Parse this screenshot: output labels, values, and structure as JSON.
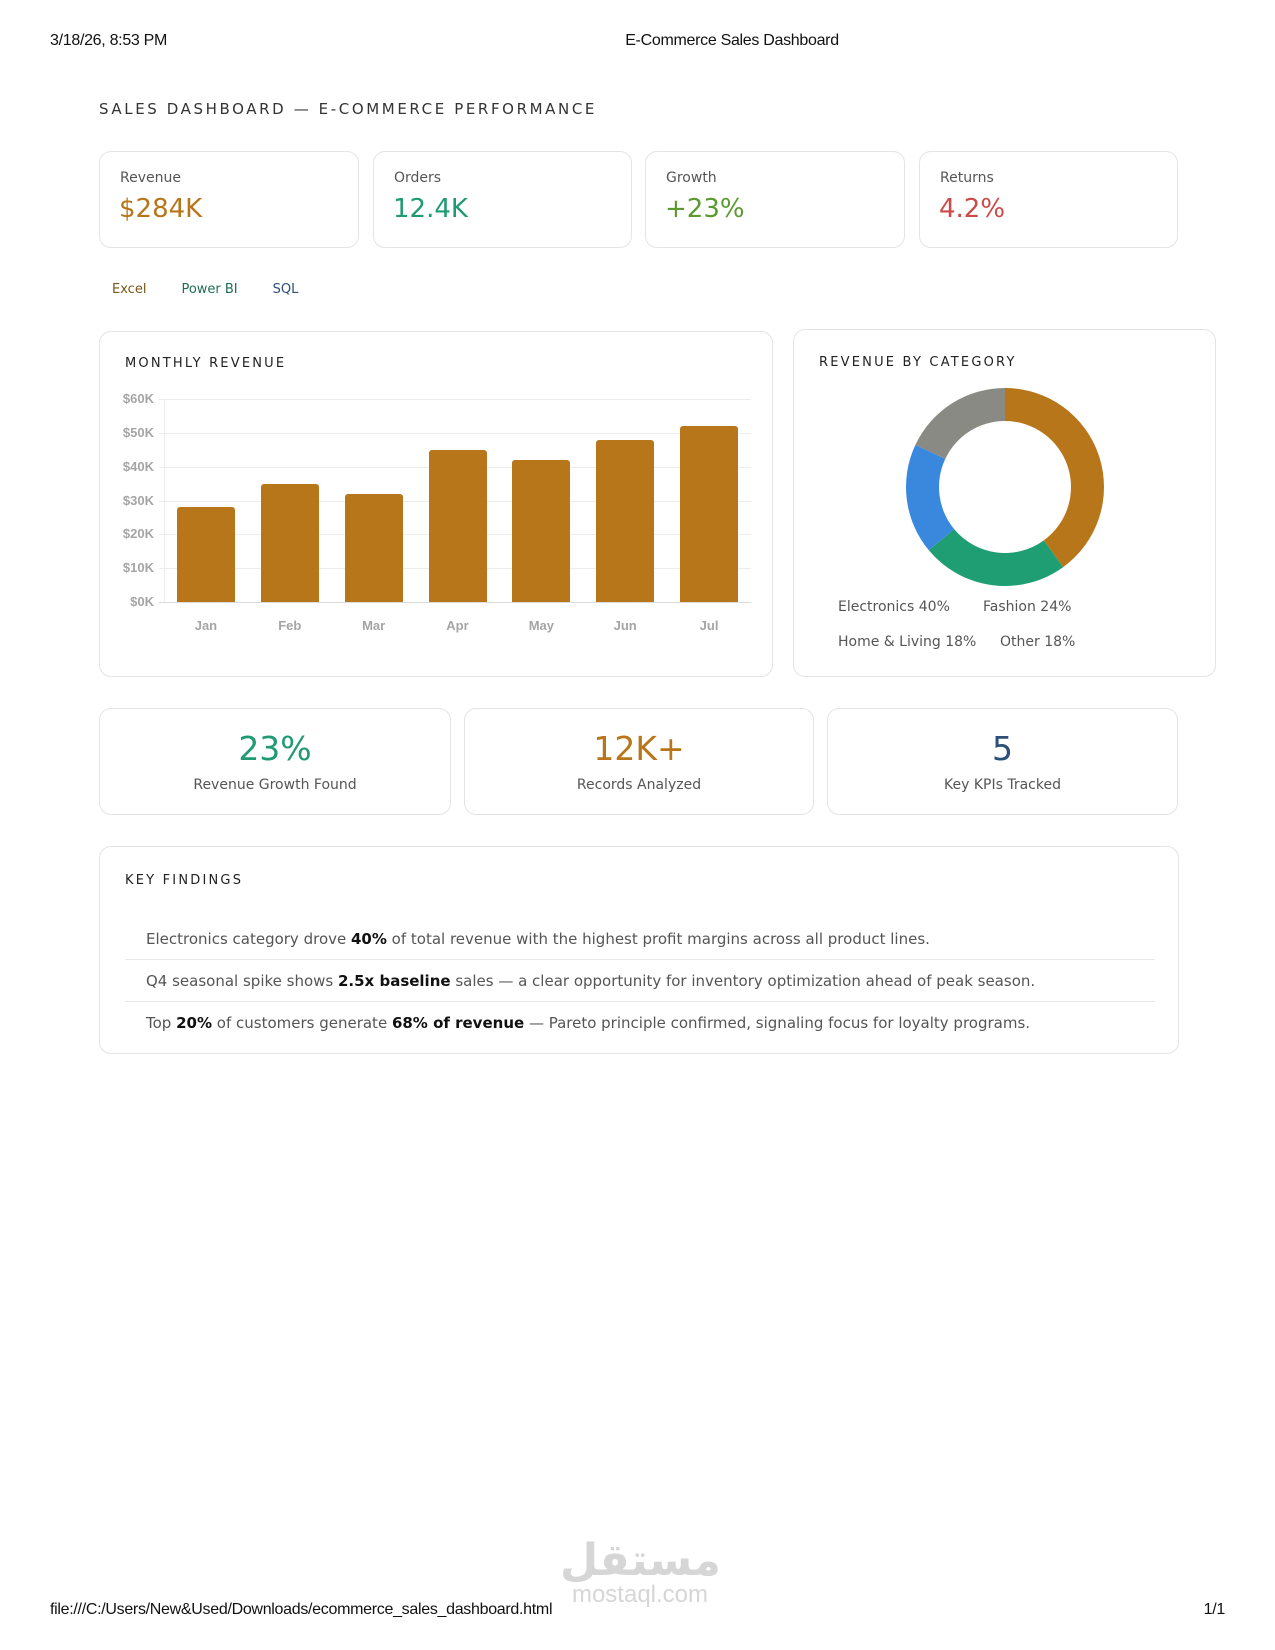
{
  "print_header": {
    "datetime": "3/18/26, 8:53 PM",
    "title": "E-Commerce Sales Dashboard"
  },
  "print_footer": {
    "url": "file:///C:/Users/New&Used/Downloads/ecommerce_sales_dashboard.html",
    "page": "1/1"
  },
  "watermark": {
    "arabic": "مستقل",
    "latin": "mostaql.com"
  },
  "dashboard": {
    "title": "SALES DASHBOARD — E-COMMERCE PERFORMANCE"
  },
  "kpis": [
    {
      "label": "Revenue",
      "value": "$284K",
      "color": "#b8761a"
    },
    {
      "label": "Orders",
      "value": "12.4K",
      "color": "#1f9a72"
    },
    {
      "label": "Growth",
      "value": "+23%",
      "color": "#5a9a2e"
    },
    {
      "label": "Returns",
      "value": "4.2%",
      "color": "#cc4a4a"
    }
  ],
  "tools": [
    {
      "label": "Excel",
      "color": "#7a5418"
    },
    {
      "label": "Power BI",
      "color": "#1e6e55"
    },
    {
      "label": "SQL",
      "color": "#2b4f78"
    }
  ],
  "monthly_revenue": {
    "title": "MONTHLY REVENUE"
  },
  "revenue_by_category": {
    "title": "REVENUE BY CATEGORY",
    "legend": [
      {
        "label": "Electronics 40%"
      },
      {
        "label": "Fashion 24%"
      },
      {
        "label": "Home & Living 18%"
      },
      {
        "label": "Other 18%"
      }
    ]
  },
  "stats": [
    {
      "value": "23%",
      "label": "Revenue Growth Found",
      "color": "#1f9a72"
    },
    {
      "value": "12K+",
      "label": "Records Analyzed",
      "color": "#b8761a"
    },
    {
      "value": "5",
      "label": "Key KPIs Tracked",
      "color": "#2b4f78"
    }
  ],
  "key_findings": {
    "title": "KEY FINDINGS",
    "items": [
      {
        "segments": [
          {
            "t": "Electronics category drove ",
            "b": false
          },
          {
            "t": "40%",
            "b": true
          },
          {
            "t": " of total revenue with the highest profit margins across all product lines.",
            "b": false
          }
        ]
      },
      {
        "segments": [
          {
            "t": "Q4 seasonal spike shows ",
            "b": false
          },
          {
            "t": "2.5x baseline",
            "b": true
          },
          {
            "t": " sales — a clear opportunity for inventory optimization ahead of peak season.",
            "b": false
          }
        ]
      },
      {
        "segments": [
          {
            "t": "Top ",
            "b": false
          },
          {
            "t": "20%",
            "b": true
          },
          {
            "t": " of customers generate ",
            "b": false
          },
          {
            "t": "68% of revenue",
            "b": true
          },
          {
            "t": " — Pareto principle confirmed, signaling focus for loyalty programs.",
            "b": false
          }
        ]
      }
    ]
  },
  "chart_data": [
    {
      "type": "bar",
      "title": "MONTHLY REVENUE",
      "categories": [
        "Jan",
        "Feb",
        "Mar",
        "Apr",
        "May",
        "Jun",
        "Jul"
      ],
      "values": [
        28,
        35,
        32,
        45,
        42,
        48,
        52
      ],
      "unit": "$K",
      "xlabel": "",
      "ylabel": "",
      "ylim": [
        0,
        60
      ],
      "yticks": [
        "$0K",
        "$10K",
        "$20K",
        "$30K",
        "$40K",
        "$50K",
        "$60K"
      ],
      "grid": true,
      "legend": "none",
      "color": "#b8761a"
    },
    {
      "type": "pie",
      "subtype": "donut",
      "title": "REVENUE BY CATEGORY",
      "categories": [
        "Electronics",
        "Fashion",
        "Home & Living",
        "Other"
      ],
      "values": [
        40,
        24,
        18,
        18
      ],
      "colors": [
        "#b8761a",
        "#1f9e74",
        "#3a88de",
        "#8a8a85"
      ],
      "legend": "bottom"
    }
  ]
}
